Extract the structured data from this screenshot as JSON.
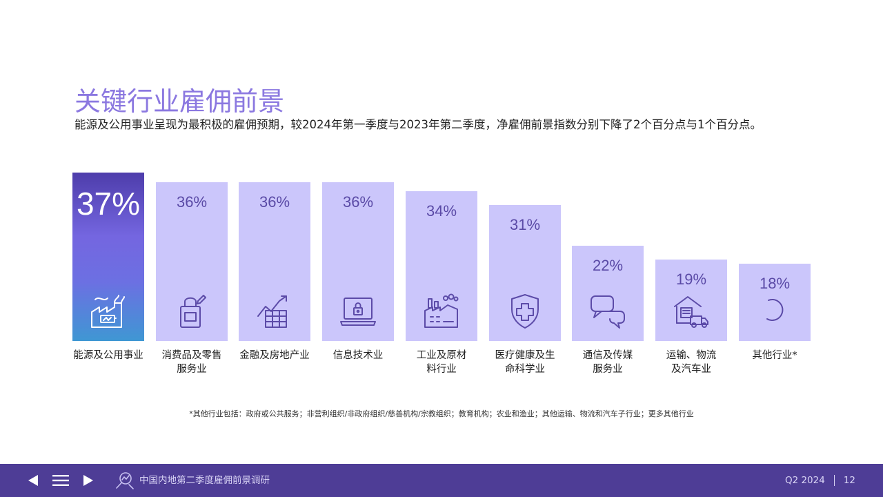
{
  "page": {
    "title": "关键行业雇佣前景",
    "subtitle": "能源及公用事业呈现为最积极的雇佣预期，较2024年第一季度与2023年第二季度，净雇佣前景指数分别下降了2个百分点与1个百分点。",
    "footnote": "*其他行业包括：政府或公共服务；非营利组织/非政府组织/慈善机构/宗教组织；教育机构；农业和渔业；其他运输、物流和汽车子行业；更多其他行业"
  },
  "colors": {
    "title": "#8b78e0",
    "bar": "#cbc6fb",
    "bar_value": "#5a4aa6",
    "icon_stroke": "#5c4ba8",
    "footer_bg": "#4e3d96"
  },
  "chart_data": {
    "type": "bar",
    "categories": [
      "能源及公用事业",
      "消费品及零售服务业",
      "金融及房地产业",
      "信息技术业",
      "工业及原材料行业",
      "医疗健康及生命科学业",
      "通信及传媒服务业",
      "运输、物流及汽车业",
      "其他行业*"
    ],
    "values": [
      37,
      36,
      36,
      36,
      34,
      31,
      22,
      19,
      18
    ],
    "value_labels": [
      "37%",
      "36%",
      "36%",
      "36%",
      "34%",
      "31%",
      "22%",
      "19%",
      "18%"
    ],
    "highlight_index": 0,
    "icons": [
      "factory-battery-icon",
      "shopping-bag-icon",
      "finance-growth-icon",
      "laptop-lock-icon",
      "industrial-factory-icon",
      "medical-shield-icon",
      "chat-bubbles-icon",
      "warehouse-truck-icon",
      "loading-circle-icon"
    ],
    "ylim": [
      0,
      37
    ],
    "grid": false,
    "legend": "none"
  },
  "footer": {
    "prev_icon": "triangle-left-icon",
    "menu_icon": "hamburger-menu-icon",
    "next_icon": "triangle-right-icon",
    "logo_icon": "search-chart-logo-icon",
    "report_title": "中国内地第二季度雇佣前景调研",
    "quarter": "Q2 2024",
    "page_number": "12"
  }
}
